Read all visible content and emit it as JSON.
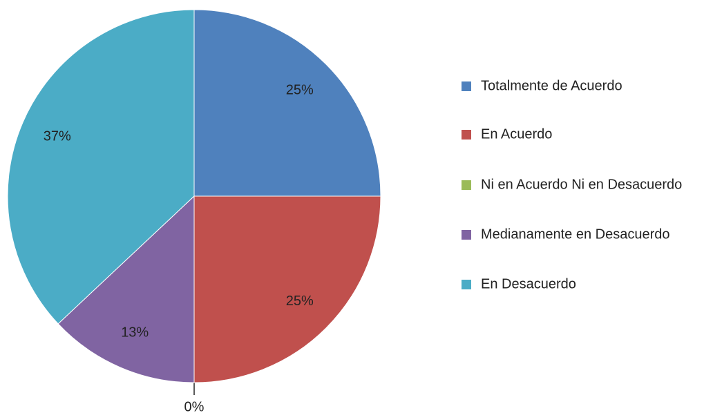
{
  "chart_data": {
    "type": "pie",
    "categories": [
      "Totalmente de Acuerdo",
      "En Acuerdo",
      "Ni en Acuerdo Ni en Desacuerdo",
      "Medianamente en Desacuerdo",
      "En Desacuerdo"
    ],
    "values": [
      25,
      25,
      0,
      13,
      37
    ],
    "value_labels": [
      "25%",
      "25%",
      "0%",
      "13%",
      "37%"
    ],
    "colors": [
      "#4f81bd",
      "#c0504d",
      "#9bbb59",
      "#8064a2",
      "#4bacc6"
    ],
    "legend": "right"
  }
}
